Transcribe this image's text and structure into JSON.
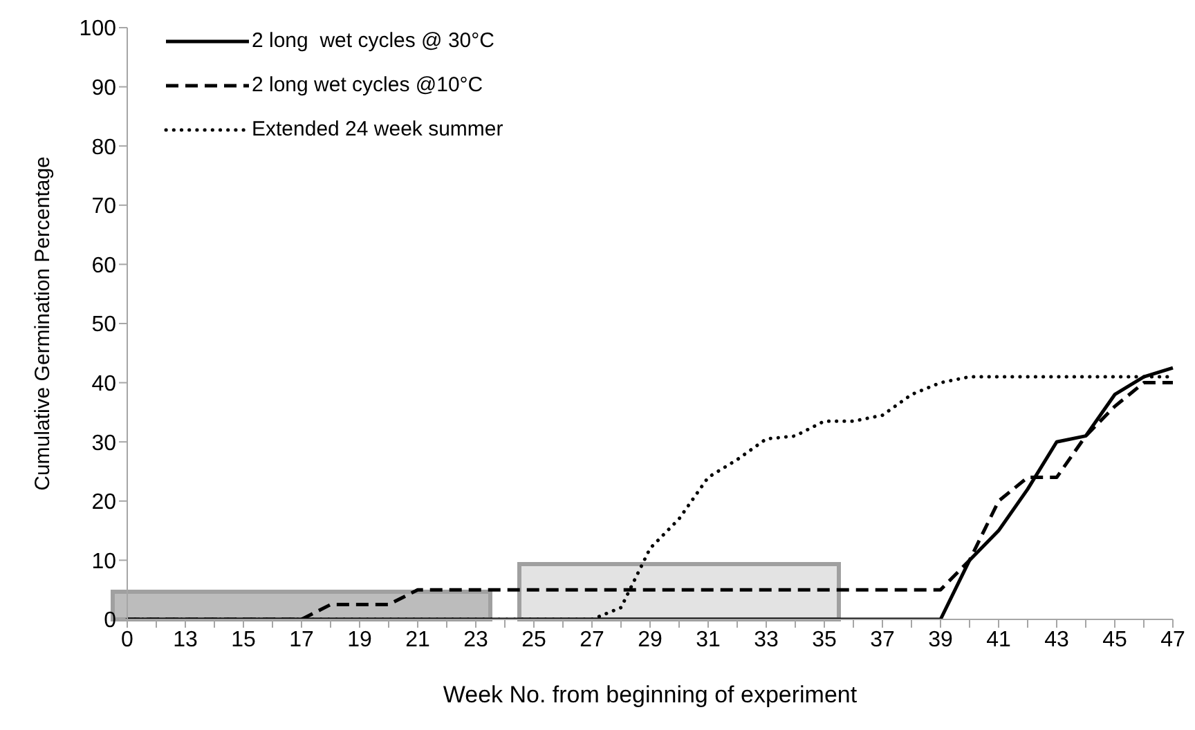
{
  "chart_data": {
    "type": "line",
    "xlabel": "Week No. from beginning of experiment",
    "ylabel": "Cumulative Germination Percentage",
    "categories": [
      "0",
      null,
      "13",
      null,
      "15",
      null,
      "17",
      null,
      "19",
      null,
      "21",
      null,
      "23",
      null,
      "25",
      null,
      "27",
      null,
      "29",
      null,
      "31",
      null,
      "33",
      null,
      "35",
      null,
      "37",
      null,
      "39",
      null,
      "41",
      null,
      "43",
      null,
      "45",
      null,
      "47"
    ],
    "series": [
      {
        "name": "2 long  wet cycles @ 30°C",
        "color": "#000000",
        "line_style": "solid",
        "values": [
          0,
          0,
          0,
          0,
          0,
          0,
          0,
          0,
          0,
          0,
          0,
          0,
          0,
          0,
          0,
          0,
          0,
          0,
          0,
          0,
          0,
          0,
          0,
          0,
          0,
          0,
          0,
          0,
          0,
          10,
          15,
          22,
          30,
          31,
          38,
          41,
          42.5
        ]
      },
      {
        "name": "2 long wet cycles @10°C",
        "color": "#000000",
        "line_style": "dashed",
        "values": [
          0,
          0,
          0,
          0,
          0,
          0,
          0,
          2.5,
          2.5,
          2.5,
          5,
          5,
          5,
          5,
          5,
          5,
          5,
          5,
          5,
          5,
          5,
          5,
          5,
          5,
          5,
          5,
          5,
          5,
          5,
          10,
          20,
          24,
          24,
          31,
          36,
          40,
          40
        ]
      },
      {
        "name": "Extended 24 week summer",
        "color": "#000000",
        "line_style": "dotted",
        "values": [
          0,
          0,
          0,
          0,
          0,
          0,
          0,
          0,
          0,
          0,
          0,
          0,
          0,
          0,
          0,
          0,
          0,
          2,
          12,
          17,
          24,
          27,
          30.5,
          31,
          33.5,
          33.5,
          34.5,
          38,
          40,
          41,
          41,
          41,
          41,
          41,
          41,
          41,
          41
        ]
      }
    ],
    "ylim": [
      0,
      100
    ],
    "yticks": [
      0,
      10,
      20,
      30,
      40,
      50,
      60,
      70,
      80,
      90,
      100
    ],
    "bands": [
      {
        "axis": "x",
        "from": "0",
        "to": "23",
        "color": "#a6a6a6"
      },
      {
        "axis": "x",
        "from": "25",
        "to": "35",
        "color": "#d9d9d9"
      }
    ],
    "legend": "top left",
    "grid": false
  }
}
